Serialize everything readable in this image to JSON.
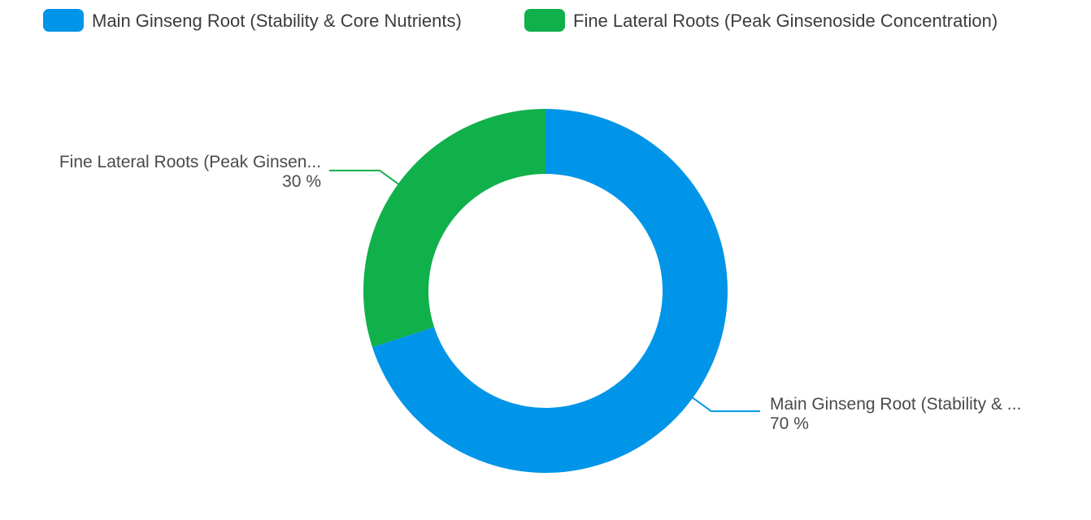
{
  "chart_data": {
    "type": "pie",
    "donut": true,
    "title": "",
    "legend_position": "top",
    "slices": [
      {
        "label": "Main Ginseng Root (Stability & Core Nutrients)",
        "callout_label": "Main Ginseng Root (Stability & ...",
        "value": 70,
        "value_label": "70 %",
        "color": "#0095e8"
      },
      {
        "label": "Fine Lateral Roots (Peak Ginsenoside Concentration)",
        "callout_label": "Fine Lateral Roots (Peak Ginsen...",
        "value": 30,
        "value_label": "30 %",
        "color": "#10b04a"
      }
    ]
  }
}
